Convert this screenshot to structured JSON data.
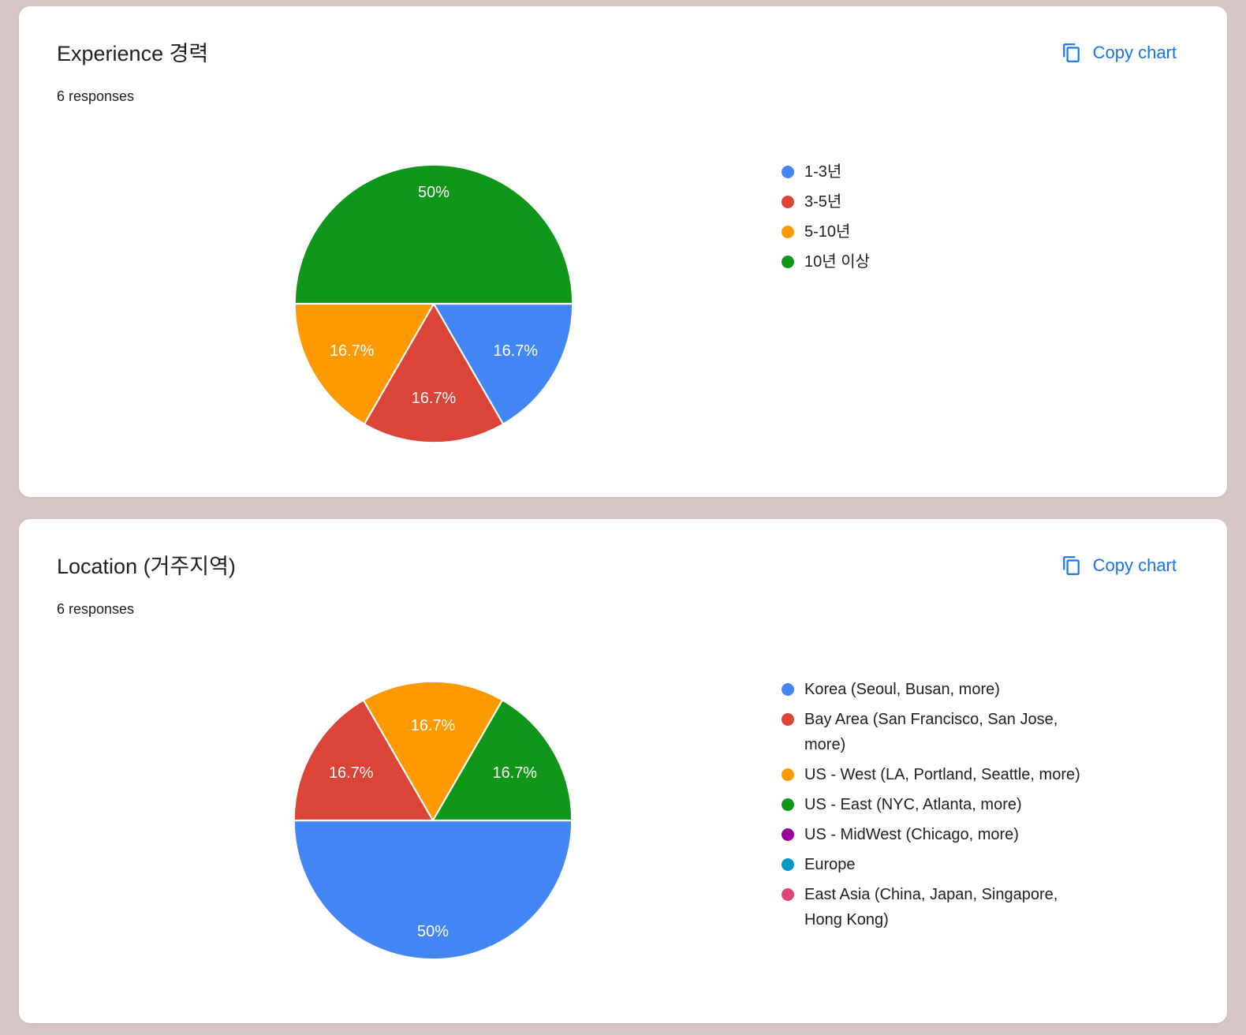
{
  "page": {
    "background_color": "#d5c6c5",
    "accent_color": "#1a73e8"
  },
  "cards": [
    {
      "title": "Experience 경력",
      "responses": "6 responses",
      "copy_button": "Copy chart"
    },
    {
      "title": "Location (거주지역)",
      "responses": "6 responses",
      "copy_button": "Copy chart"
    }
  ],
  "chart_data": [
    {
      "type": "pie",
      "title": "Experience 경력",
      "responses_count": 6,
      "legend_position": "right",
      "start_angle": "east-clockwise",
      "slices": [
        {
          "label": "1-3년",
          "value": 1,
          "percent_label": "16.7%",
          "color": "#4285f4"
        },
        {
          "label": "3-5년",
          "value": 1,
          "percent_label": "16.7%",
          "color": "#db4437"
        },
        {
          "label": "5-10년",
          "value": 1,
          "percent_label": "16.7%",
          "color": "#ff9900"
        },
        {
          "label": "10년 이상",
          "value": 3,
          "percent_label": "50%",
          "color": "#109618"
        }
      ]
    },
    {
      "type": "pie",
      "title": "Location (거주지역)",
      "responses_count": 6,
      "legend_position": "right",
      "start_angle": "east-clockwise",
      "slices": [
        {
          "label": "Korea (Seoul, Busan, more)",
          "value": 3,
          "percent_label": "50%",
          "color": "#4285f4"
        },
        {
          "label": "Bay Area (San Francisco, San Jose, more)",
          "label_lines": [
            "Bay Area (San Francisco, San Jose,",
            "more)"
          ],
          "value": 1,
          "percent_label": "16.7%",
          "color": "#db4437"
        },
        {
          "label": "US - West (LA, Portland, Seattle, more)",
          "value": 1,
          "percent_label": "16.7%",
          "color": "#ff9900"
        },
        {
          "label": "US - East (NYC, Atlanta, more)",
          "value": 1,
          "percent_label": "16.7%",
          "color": "#109618"
        },
        {
          "label": "US - MidWest (Chicago, more)",
          "value": 0,
          "percent_label": "0%",
          "color": "#990099"
        },
        {
          "label": "Europe",
          "value": 0,
          "percent_label": "0%",
          "color": "#0099c6"
        },
        {
          "label": "East Asia (China, Japan, Singapore, Hong Kong)",
          "label_lines": [
            "East Asia (China, Japan, Singapore,",
            "Hong Kong)"
          ],
          "value": 0,
          "percent_label": "0%",
          "color": "#dd4477"
        }
      ]
    }
  ]
}
